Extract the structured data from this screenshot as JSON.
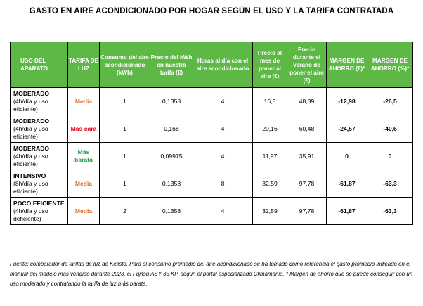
{
  "title": "GASTO EN AIRE ACONDICIONADO POR HOGAR SEGÚN EL USO Y LA TARIFA CONTRATADA",
  "columns": [
    "USO DEL APARATO",
    "TARIFA DE LUZ",
    "Consumo del aire acondicionado (kWh)",
    "Precio del kWh en nuestra tarifa (€)",
    "Horas al día con el aire acondicionado",
    "Precio al mes de poner al aire (€)",
    "Precio durante el verano de poner el aire (€)",
    "MARGEN DE AHORRO (€)*",
    "MARGEN DE AHORRO (%)*"
  ],
  "rows": [
    {
      "usage_title": "MODERADO",
      "usage_desc": "(4h/día y uso eficiente)",
      "tariff": "Media",
      "tariff_color": "#e86a2c",
      "consumption": "1",
      "kwh_price": "0,1358",
      "hours": "4",
      "monthly": "16,3",
      "summer": "48,89",
      "saving_eur": "-12,98",
      "saving_pct": "-26,5"
    },
    {
      "usage_title": "MODERADO",
      "usage_desc": "(4h/día y uso eficiente)",
      "tariff": "Más cara",
      "tariff_color": "#e0001b",
      "consumption": "1",
      "kwh_price": "0,168",
      "hours": "4",
      "monthly": "20,16",
      "summer": "60,48",
      "saving_eur": "-24,57",
      "saving_pct": "-40,6"
    },
    {
      "usage_title": "MODERADO",
      "usage_desc": "(4h/día y uso eficiente)",
      "tariff": "Más barata",
      "tariff_color": "#21a146",
      "consumption": "1",
      "kwh_price": "0,09975",
      "hours": "4",
      "monthly": "11,97",
      "summer": "35,91",
      "saving_eur": "0",
      "saving_pct": "0"
    },
    {
      "usage_title": "INTENSIVO",
      "usage_desc": "(8h/día y uso eficiente)",
      "tariff": "Media",
      "tariff_color": "#e86a2c",
      "consumption": "1",
      "kwh_price": "0,1358",
      "hours": "8",
      "monthly": "32,59",
      "summer": "97,78",
      "saving_eur": "-61,87",
      "saving_pct": "-63,3"
    },
    {
      "usage_title": "POCO EFICIENTE",
      "usage_desc": "(4h/día y uso deficiente)",
      "tariff": "Media",
      "tariff_color": "#e86a2c",
      "consumption": "2",
      "kwh_price": "0,1358",
      "hours": "4",
      "monthly": "32,59",
      "summer": "97,78",
      "saving_eur": "-61,87",
      "saving_pct": "-63,3"
    }
  ],
  "footnote": "Fuente: comparador de tarifas de luz de Kelisto. Para el consumo promedio del aire acondicionado se ha tomado como referencia el gasto promedio indicado en el manual del modelo más vendido durante 2023, el Fujitsu ASY 35 KP, según el portal especializado Climamania. * Margen de ahorro que se puede conseguir con un uso moderado y contratando la tarifa de luz más barata."
}
